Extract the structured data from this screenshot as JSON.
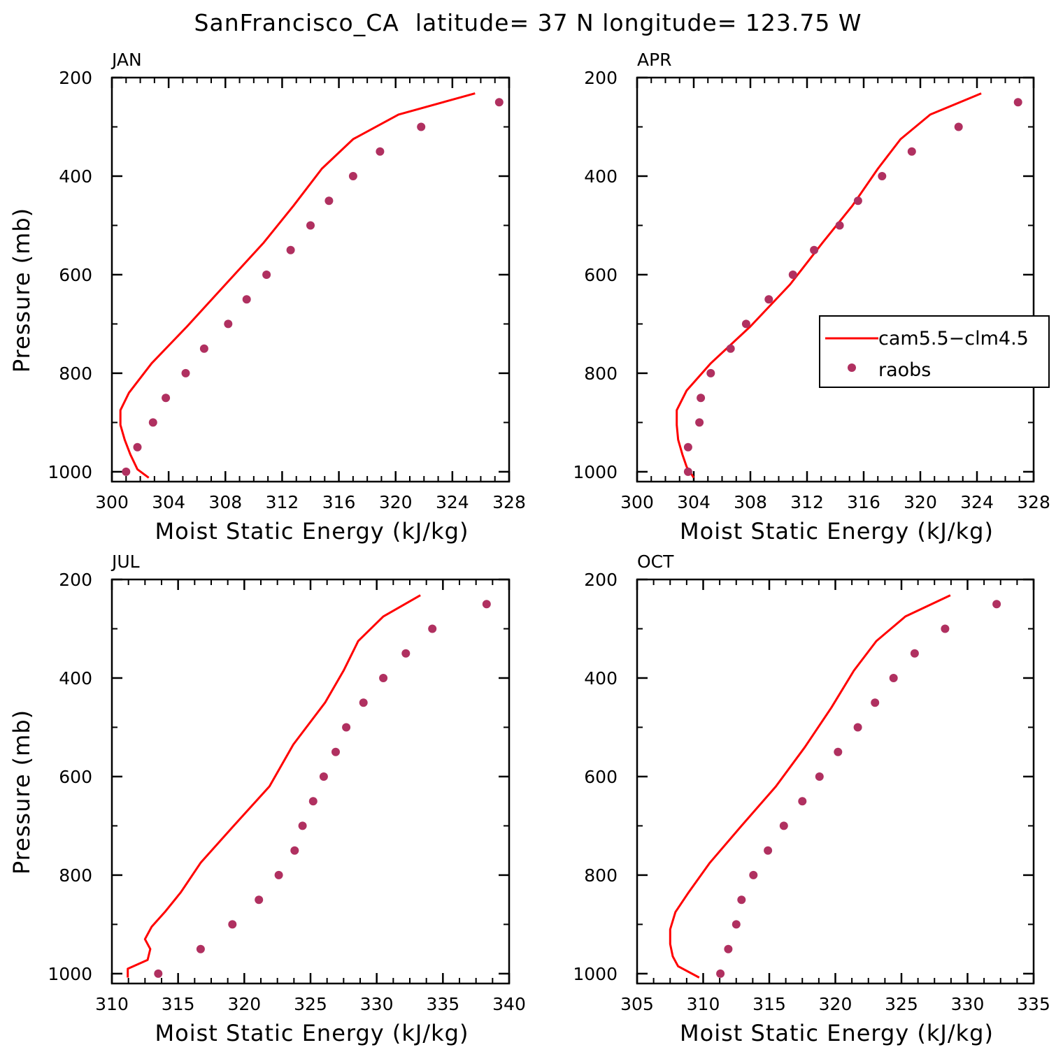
{
  "title": "SanFrancisco_CA  latitude= 37 N longitude= 123.75 W",
  "legend": {
    "entries": [
      {
        "label": "cam5.5−clm4.5",
        "color": "#ff0000",
        "kind": "line"
      },
      {
        "label": "raobs",
        "color": "#b03060",
        "kind": "marker"
      }
    ]
  },
  "chart_data": [
    {
      "type": "line",
      "panel": "JAN",
      "title": "JAN",
      "xlabel": "Moist Static Energy (kJ/kg)",
      "ylabel": "Pressure (mb)",
      "xlim": [
        300,
        328
      ],
      "ylim": [
        1020,
        200
      ],
      "xticks": [
        300,
        304,
        308,
        312,
        316,
        320,
        324,
        328
      ],
      "yticks": [
        200,
        400,
        600,
        800,
        1000
      ],
      "series": [
        {
          "name": "cam5.5−clm4.5",
          "style": "line",
          "color": "#ff0000",
          "points": [
            [
              325.6,
              232
            ],
            [
              320.2,
              275
            ],
            [
              317.0,
              325
            ],
            [
              314.8,
              385
            ],
            [
              312.8,
              460
            ],
            [
              310.7,
              535
            ],
            [
              308.0,
              620
            ],
            [
              305.3,
              705
            ],
            [
              302.8,
              780
            ],
            [
              301.2,
              840
            ],
            [
              300.6,
              875
            ],
            [
              300.6,
              905
            ],
            [
              300.9,
              935
            ],
            [
              301.3,
              965
            ],
            [
              301.8,
              995
            ],
            [
              302.6,
              1012
            ]
          ]
        },
        {
          "name": "raobs",
          "style": "marker",
          "color": "#b03060",
          "points": [
            [
              327.3,
              250
            ],
            [
              321.8,
              300
            ],
            [
              318.9,
              350
            ],
            [
              317.0,
              400
            ],
            [
              315.3,
              450
            ],
            [
              314.0,
              500
            ],
            [
              312.6,
              550
            ],
            [
              310.9,
              600
            ],
            [
              309.5,
              650
            ],
            [
              308.2,
              700
            ],
            [
              306.5,
              750
            ],
            [
              305.2,
              800
            ],
            [
              303.8,
              850
            ],
            [
              302.9,
              900
            ],
            [
              301.8,
              950
            ],
            [
              301.0,
              1000
            ]
          ]
        }
      ]
    },
    {
      "type": "line",
      "panel": "APR",
      "title": "APR",
      "xlabel": "Moist Static Energy (kJ/kg)",
      "ylabel": "",
      "xlim": [
        300,
        328
      ],
      "ylim": [
        1020,
        200
      ],
      "xticks": [
        300,
        304,
        308,
        312,
        316,
        320,
        324,
        328
      ],
      "yticks": [
        200,
        400,
        600,
        800,
        1000
      ],
      "series": [
        {
          "name": "cam5.5−clm4.5",
          "style": "line",
          "color": "#ff0000",
          "points": [
            [
              324.3,
              232
            ],
            [
              320.7,
              275
            ],
            [
              318.6,
              325
            ],
            [
              317.0,
              385
            ],
            [
              315.2,
              460
            ],
            [
              313.1,
              535
            ],
            [
              310.8,
              620
            ],
            [
              308.0,
              705
            ],
            [
              305.2,
              780
            ],
            [
              303.5,
              835
            ],
            [
              302.8,
              875
            ],
            [
              302.8,
              905
            ],
            [
              302.9,
              935
            ],
            [
              303.2,
              965
            ],
            [
              303.5,
              990
            ],
            [
              304.0,
              1012
            ]
          ]
        },
        {
          "name": "raobs",
          "style": "marker",
          "color": "#b03060",
          "points": [
            [
              326.9,
              250
            ],
            [
              322.7,
              300
            ],
            [
              319.4,
              350
            ],
            [
              317.3,
              400
            ],
            [
              315.6,
              450
            ],
            [
              314.3,
              500
            ],
            [
              312.5,
              550
            ],
            [
              311.0,
              600
            ],
            [
              309.3,
              650
            ],
            [
              307.7,
              700
            ],
            [
              306.6,
              750
            ],
            [
              305.2,
              800
            ],
            [
              304.5,
              850
            ],
            [
              304.4,
              900
            ],
            [
              303.6,
              950
            ],
            [
              303.6,
              1000
            ]
          ]
        }
      ]
    },
    {
      "type": "line",
      "panel": "JUL",
      "title": "JUL",
      "xlabel": "Moist Static Energy (kJ/kg)",
      "ylabel": "Pressure (mb)",
      "xlim": [
        310,
        340
      ],
      "ylim": [
        1020,
        200
      ],
      "xticks": [
        310,
        315,
        320,
        325,
        330,
        335,
        340
      ],
      "yticks": [
        200,
        400,
        600,
        800,
        1000
      ],
      "series": [
        {
          "name": "cam5.5−clm4.5",
          "style": "line",
          "color": "#ff0000",
          "points": [
            [
              333.3,
              232
            ],
            [
              330.5,
              275
            ],
            [
              328.6,
              325
            ],
            [
              327.5,
              385
            ],
            [
              326.1,
              450
            ],
            [
              323.7,
              535
            ],
            [
              321.9,
              620
            ],
            [
              319.2,
              700
            ],
            [
              316.7,
              775
            ],
            [
              315.2,
              835
            ],
            [
              314.0,
              875
            ],
            [
              313.0,
              905
            ],
            [
              312.5,
              930
            ],
            [
              312.9,
              950
            ],
            [
              312.7,
              972
            ],
            [
              311.2,
              990
            ],
            [
              311.2,
              1008
            ]
          ]
        },
        {
          "name": "raobs",
          "style": "marker",
          "color": "#b03060",
          "points": [
            [
              338.3,
              250
            ],
            [
              334.2,
              300
            ],
            [
              332.2,
              350
            ],
            [
              330.5,
              400
            ],
            [
              329.0,
              450
            ],
            [
              327.7,
              500
            ],
            [
              326.9,
              550
            ],
            [
              326.0,
              600
            ],
            [
              325.2,
              650
            ],
            [
              324.4,
              700
            ],
            [
              323.8,
              750
            ],
            [
              322.6,
              800
            ],
            [
              321.1,
              850
            ],
            [
              319.1,
              900
            ],
            [
              316.7,
              950
            ],
            [
              313.5,
              1000
            ]
          ]
        }
      ]
    },
    {
      "type": "line",
      "panel": "OCT",
      "title": "OCT",
      "xlabel": "Moist Static Energy (kJ/kg)",
      "ylabel": "",
      "xlim": [
        305,
        335
      ],
      "ylim": [
        1020,
        200
      ],
      "xticks": [
        305,
        310,
        315,
        320,
        325,
        330,
        335
      ],
      "yticks": [
        200,
        400,
        600,
        800,
        1000
      ],
      "series": [
        {
          "name": "cam5.5−clm4.5",
          "style": "line",
          "color": "#ff0000",
          "points": [
            [
              328.7,
              232
            ],
            [
              325.3,
              275
            ],
            [
              323.1,
              325
            ],
            [
              321.4,
              385
            ],
            [
              319.7,
              460
            ],
            [
              317.7,
              540
            ],
            [
              315.5,
              620
            ],
            [
              312.9,
              700
            ],
            [
              310.5,
              775
            ],
            [
              308.9,
              835
            ],
            [
              307.9,
              875
            ],
            [
              307.5,
              910
            ],
            [
              307.5,
              940
            ],
            [
              307.7,
              965
            ],
            [
              308.1,
              985
            ],
            [
              309.7,
              1008
            ]
          ]
        },
        {
          "name": "raobs",
          "style": "marker",
          "color": "#b03060",
          "points": [
            [
              332.2,
              250
            ],
            [
              328.3,
              300
            ],
            [
              326.0,
              350
            ],
            [
              324.4,
              400
            ],
            [
              323.0,
              450
            ],
            [
              321.7,
              500
            ],
            [
              320.2,
              550
            ],
            [
              318.8,
              600
            ],
            [
              317.5,
              650
            ],
            [
              316.1,
              700
            ],
            [
              314.9,
              750
            ],
            [
              313.8,
              800
            ],
            [
              312.9,
              850
            ],
            [
              312.5,
              900
            ],
            [
              311.9,
              950
            ],
            [
              311.3,
              1000
            ]
          ]
        }
      ]
    }
  ]
}
